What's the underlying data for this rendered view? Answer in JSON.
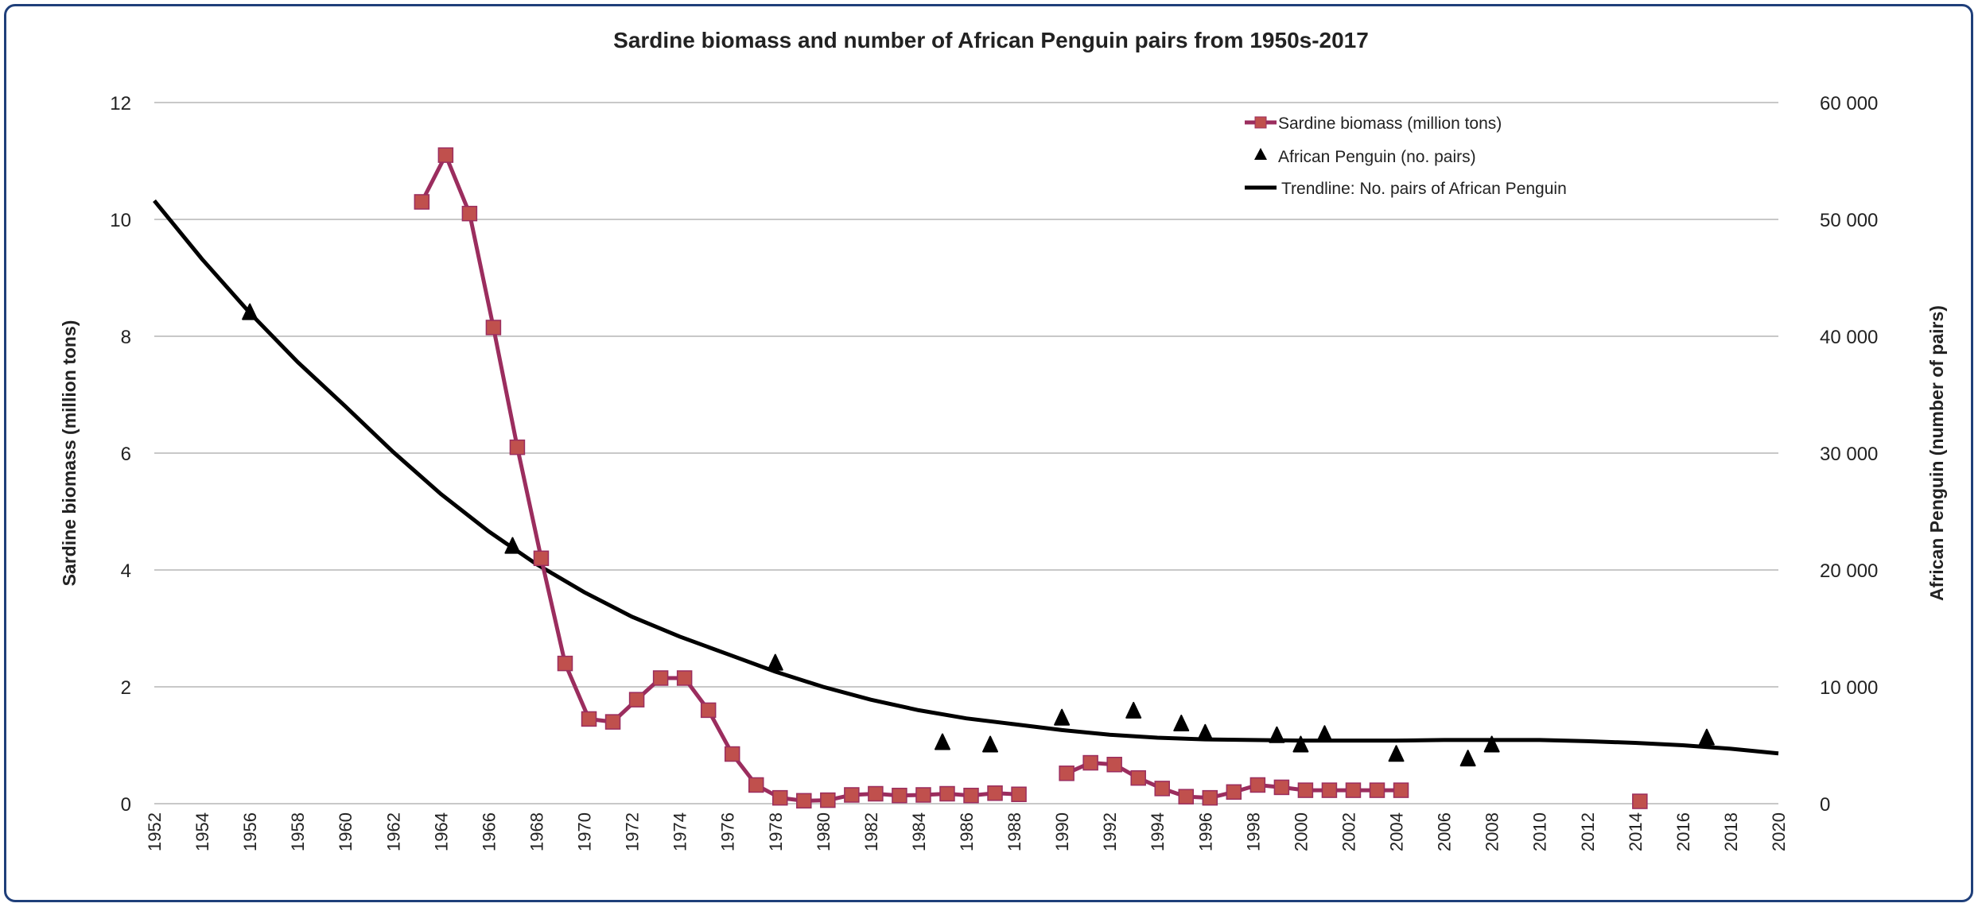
{
  "chart_data": {
    "type": "line",
    "title": "Sardine biomass and number of African Penguin pairs from 1950s-2017",
    "xlabel": "",
    "ylabel": "Sardine biomass (million  tons)",
    "y2label": "African  Penguin (number of pairs)",
    "xlim": [
      1952,
      2020
    ],
    "ylim": [
      0,
      12
    ],
    "y2lim": [
      0,
      60000
    ],
    "x_ticks": [
      "1952",
      "1954",
      "1956",
      "1958",
      "1960",
      "1962",
      "1964",
      "1966",
      "1968",
      "1970",
      "1972",
      "1974",
      "1976",
      "1978",
      "1980",
      "1982",
      "1984",
      "1986",
      "1988",
      "1990",
      "1992",
      "1994",
      "1996",
      "1998",
      "2000",
      "2002",
      "2004",
      "2006",
      "2008",
      "2010",
      "2012",
      "2014",
      "2016",
      "2018",
      "2020"
    ],
    "y_ticks": [
      "0",
      "2",
      "4",
      "6",
      "8",
      "10",
      "12"
    ],
    "y2_ticks": [
      "0",
      "10 000",
      "20 000",
      "30 000",
      "40 000",
      "50 000",
      "60 000"
    ],
    "grid": true,
    "legend_position": "top-right",
    "colors": {
      "sardine_line": "#9b2d5e",
      "sardine_marker": "#c0504d",
      "penguin": "#000000",
      "trend": "#000000",
      "frame": "#1f3f7a",
      "grid": "#c8c8c8"
    },
    "series": [
      {
        "name": "Sardine biomass (million tons)",
        "type": "line-square",
        "axis": "left",
        "segments": [
          [
            [
              1963,
              10.3
            ],
            [
              1964,
              11.1
            ],
            [
              1965,
              10.1
            ],
            [
              1966,
              8.15
            ],
            [
              1967,
              6.1
            ],
            [
              1968,
              4.2
            ],
            [
              1969,
              2.4
            ],
            [
              1970,
              1.45
            ],
            [
              1971,
              1.4
            ],
            [
              1972,
              1.78
            ],
            [
              1973,
              2.15
            ],
            [
              1974,
              2.15
            ],
            [
              1975,
              1.6
            ],
            [
              1976,
              0.85
            ],
            [
              1977,
              0.32
            ],
            [
              1978,
              0.1
            ],
            [
              1979,
              0.05
            ],
            [
              1980,
              0.06
            ],
            [
              1981,
              0.15
            ],
            [
              1982,
              0.17
            ],
            [
              1983,
              0.14
            ],
            [
              1984,
              0.15
            ],
            [
              1985,
              0.17
            ],
            [
              1986,
              0.14
            ],
            [
              1987,
              0.18
            ],
            [
              1988,
              0.16
            ]
          ],
          [
            [
              1990,
              0.52
            ],
            [
              1991,
              0.7
            ],
            [
              1992,
              0.67
            ],
            [
              1993,
              0.44
            ],
            [
              1994,
              0.26
            ],
            [
              1995,
              0.12
            ],
            [
              1996,
              0.1
            ],
            [
              1997,
              0.2
            ],
            [
              1998,
              0.32
            ],
            [
              1999,
              0.28
            ],
            [
              2000,
              0.23
            ],
            [
              2001,
              0.23
            ],
            [
              2002,
              0.23
            ],
            [
              2003,
              0.23
            ],
            [
              2004,
              0.23
            ]
          ],
          [
            [
              2014,
              0.04
            ]
          ]
        ]
      },
      {
        "name": "African Penguin (no. pairs)",
        "type": "scatter-triangle",
        "axis": "right",
        "points": [
          [
            1956,
            42000
          ],
          [
            1967,
            22000
          ],
          [
            1978,
            12000
          ],
          [
            1985,
            5200
          ],
          [
            1987,
            5000
          ],
          [
            1990,
            7300
          ],
          [
            1993,
            7900
          ],
          [
            1995,
            6800
          ],
          [
            1996,
            6000
          ],
          [
            1999,
            5800
          ],
          [
            2000,
            5000
          ],
          [
            2001,
            5900
          ],
          [
            2004,
            4200
          ],
          [
            2007,
            3800
          ],
          [
            2008,
            5000
          ],
          [
            2017,
            5600
          ]
        ]
      },
      {
        "name": "Trendline: No. pairs of African Penguin",
        "type": "trendline",
        "axis": "right",
        "points": [
          [
            1952,
            51600
          ],
          [
            1954,
            46600
          ],
          [
            1956,
            42000
          ],
          [
            1958,
            37800
          ],
          [
            1960,
            34000
          ],
          [
            1962,
            30100
          ],
          [
            1964,
            26500
          ],
          [
            1966,
            23300
          ],
          [
            1968,
            20500
          ],
          [
            1970,
            18100
          ],
          [
            1972,
            16000
          ],
          [
            1974,
            14300
          ],
          [
            1976,
            12800
          ],
          [
            1978,
            11300
          ],
          [
            1980,
            10000
          ],
          [
            1982,
            8900
          ],
          [
            1984,
            8000
          ],
          [
            1986,
            7300
          ],
          [
            1988,
            6800
          ],
          [
            1990,
            6300
          ],
          [
            1992,
            5900
          ],
          [
            1994,
            5650
          ],
          [
            1996,
            5500
          ],
          [
            1998,
            5450
          ],
          [
            2000,
            5400
          ],
          [
            2002,
            5400
          ],
          [
            2004,
            5400
          ],
          [
            2006,
            5450
          ],
          [
            2008,
            5450
          ],
          [
            2010,
            5450
          ],
          [
            2012,
            5350
          ],
          [
            2014,
            5200
          ],
          [
            2016,
            5000
          ],
          [
            2018,
            4700
          ],
          [
            2020,
            4300
          ]
        ]
      }
    ]
  }
}
